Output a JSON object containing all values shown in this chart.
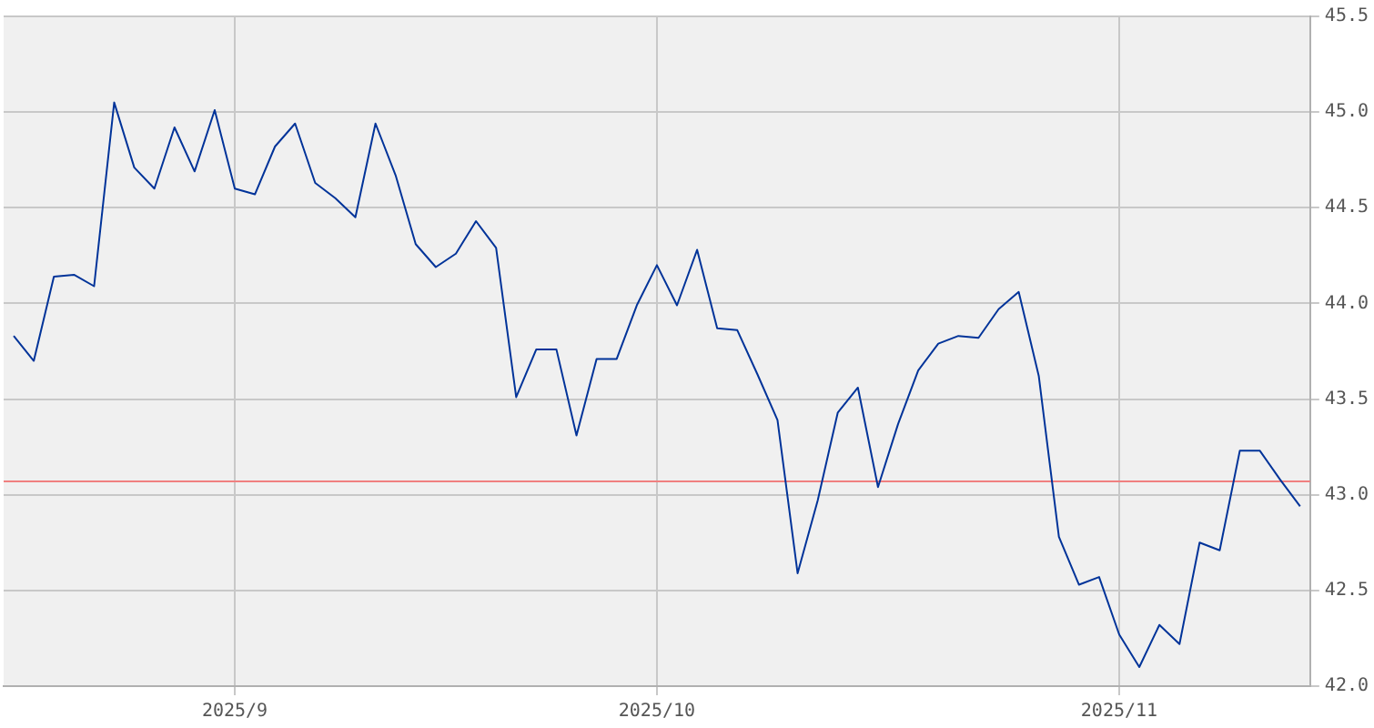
{
  "chart_data": {
    "type": "line",
    "categories": [
      null,
      null,
      null,
      null,
      null,
      null,
      null,
      null,
      null,
      null,
      null,
      "2025/9",
      null,
      null,
      null,
      null,
      null,
      null,
      null,
      null,
      null,
      null,
      null,
      null,
      null,
      null,
      null,
      null,
      null,
      null,
      null,
      null,
      "2025/10",
      null,
      null,
      null,
      null,
      null,
      null,
      null,
      null,
      null,
      null,
      null,
      null,
      null,
      null,
      null,
      null,
      null,
      null,
      null,
      null,
      null,
      null,
      "2025/11",
      null,
      null,
      null,
      null,
      null,
      null,
      null,
      null,
      null
    ],
    "series": [
      {
        "color": "#003399",
        "values": [
          43.83,
          43.7,
          44.14,
          44.15,
          44.09,
          45.05,
          44.71,
          44.6,
          44.92,
          44.69,
          45.01,
          44.6,
          44.57,
          44.82,
          44.94,
          44.63,
          44.55,
          44.45,
          44.94,
          44.67,
          44.31,
          44.19,
          44.26,
          44.43,
          44.29,
          43.51,
          43.76,
          43.76,
          43.31,
          43.71,
          43.71,
          43.99,
          44.2,
          43.99,
          44.28,
          43.87,
          43.86,
          43.63,
          43.39,
          42.59,
          42.97,
          43.43,
          43.56,
          43.04,
          43.37,
          43.65,
          43.79,
          43.83,
          43.82,
          43.97,
          44.06,
          43.62,
          42.78,
          42.53,
          42.57,
          42.27,
          42.1,
          42.32,
          42.22,
          42.75,
          42.71,
          43.23,
          43.23,
          43.08,
          42.94
        ]
      }
    ],
    "ylim": [
      42.0,
      45.5
    ],
    "yticks": [
      {
        "value": 42.0,
        "label": "42.0"
      },
      {
        "value": 42.5,
        "label": "42.5"
      },
      {
        "value": 43.0,
        "label": "43.0"
      },
      {
        "value": 43.5,
        "label": "43.5"
      },
      {
        "value": 44.0,
        "label": "44.0"
      },
      {
        "value": 44.5,
        "label": "44.5"
      },
      {
        "value": 45.0,
        "label": "45.0"
      },
      {
        "value": 45.5,
        "label": "45.5"
      }
    ],
    "ref_lines": [
      {
        "axis": "y",
        "value": 43.07,
        "color": "#f08080"
      }
    ],
    "grid": true,
    "legend": false,
    "marker": "none",
    "line_style": "solid"
  }
}
